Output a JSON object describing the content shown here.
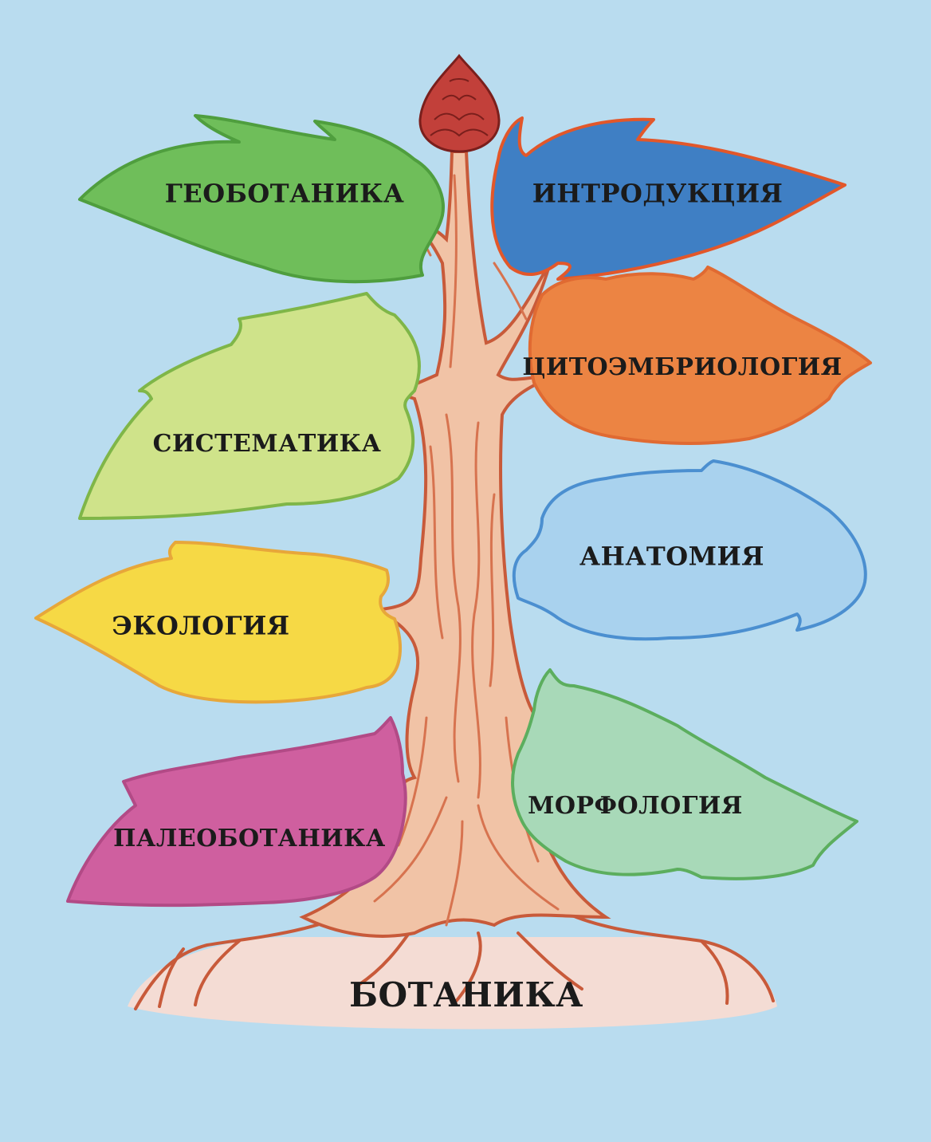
{
  "root": {
    "label": "БОТАНИКА",
    "ground_color": "#f4dcd4"
  },
  "branches": [
    {
      "id": "geobotanika",
      "label": "ГЕОБОТАНИКА",
      "fill": "#6fbe5a",
      "stroke": "#4f9e3e"
    },
    {
      "id": "introduktsiya",
      "label": "ИНТРОДУКЦИЯ",
      "fill": "#3f7fc4",
      "stroke": "#e2572a"
    },
    {
      "id": "sistematika",
      "label": "СИСТЕМАТИКА",
      "fill": "#cfe38a",
      "stroke": "#7fb648"
    },
    {
      "id": "tsitoembriologiya",
      "label": "ЦИТОЭМБРИОЛОГИЯ",
      "fill": "#ec8443",
      "stroke": "#e06a32"
    },
    {
      "id": "anatomiya",
      "label": "АНАТОМИЯ",
      "fill": "#a9d2ee",
      "stroke": "#4b8fd0"
    },
    {
      "id": "ekologiya",
      "label": "ЭКОЛОГИЯ",
      "fill": "#f6d945",
      "stroke": "#e7a73a"
    },
    {
      "id": "morfologiya",
      "label": "МОРФОЛОГИЯ",
      "fill": "#a8d9b8",
      "stroke": "#5cae5e"
    },
    {
      "id": "paleobotanika",
      "label": "ПАЛЕОБОТАНИКА",
      "fill": "#cf5f9f",
      "stroke": "#b24a86"
    }
  ],
  "colors": {
    "background": "#b9dcef",
    "trunk": "#f1c3a6",
    "trunk_stroke": "#c85a3a",
    "bud": "#c2403a"
  }
}
